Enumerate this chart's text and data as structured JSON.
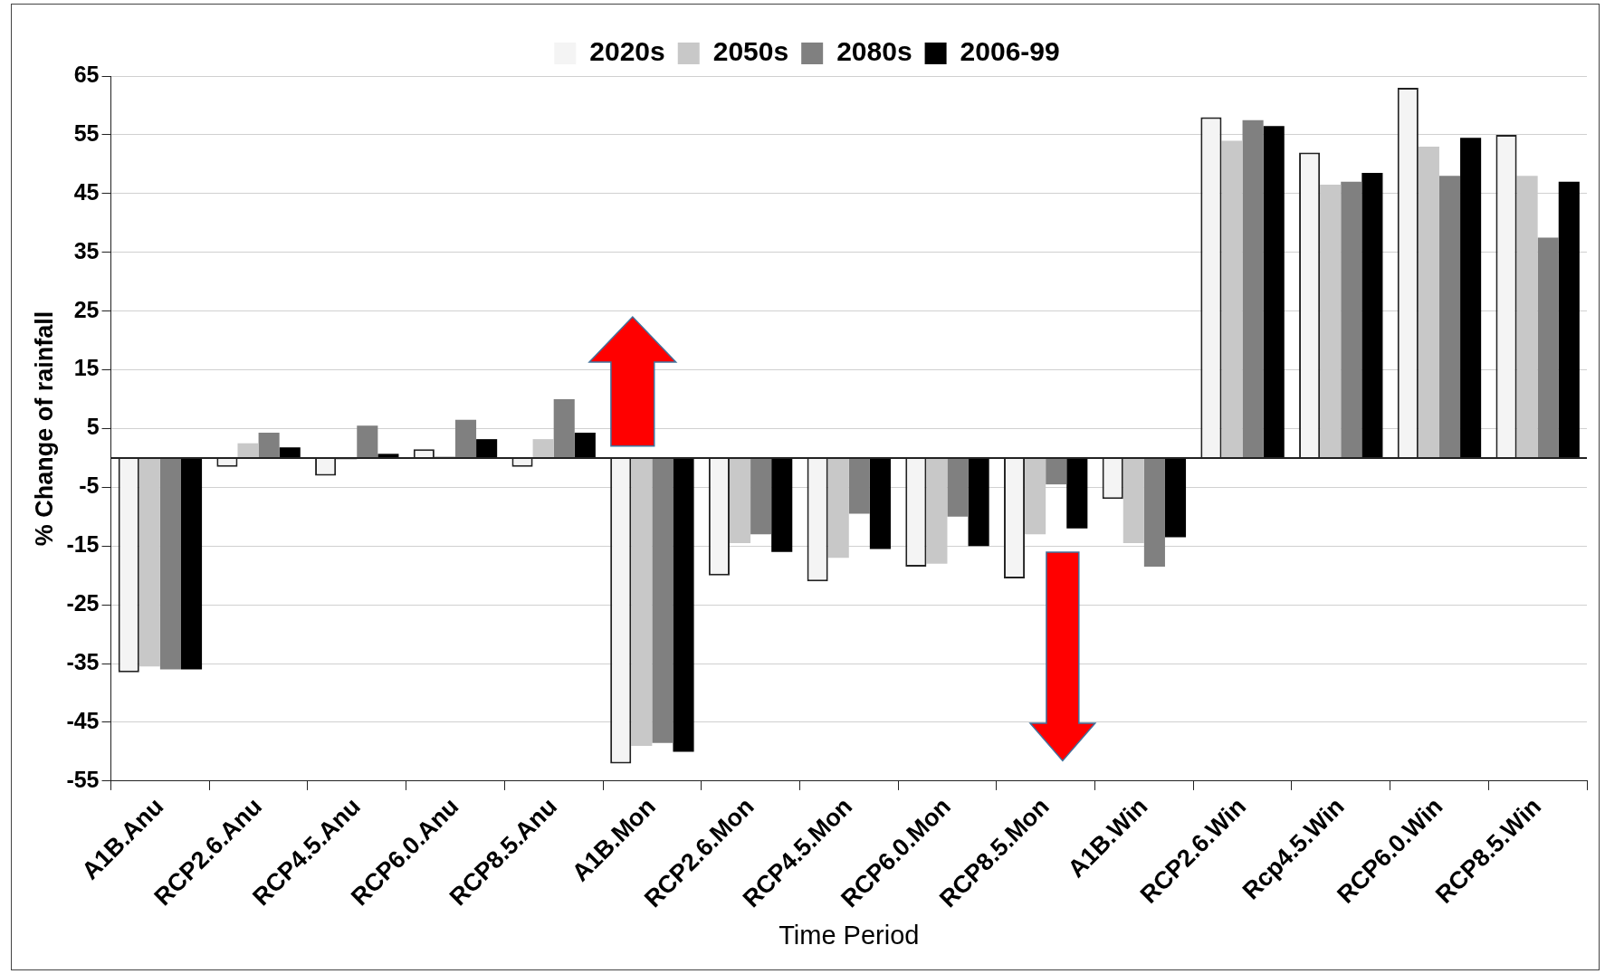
{
  "chart_data": {
    "type": "bar",
    "xlabel": "Time Period",
    "ylabel": "% Change of rainfall",
    "categories": [
      "A1B.Anu",
      "RCP2.6.Anu",
      "RCP4.5.Anu",
      "RCP6.0.Anu",
      "RCP8.5.Anu",
      "A1B.Mon",
      "RCP2.6.Mon",
      "RCP4.5.Mon",
      "RCP6.0.Mon",
      "RCP8.5.Mon",
      "A1B.Win",
      "RCP2.6.Win",
      "Rcp4.5.Win",
      "RCP6.0.Win",
      "RCP8.5.Win"
    ],
    "series": [
      {
        "name": "2020s",
        "color": "#f4f4f4",
        "values": [
          -36.5,
          -1.5,
          -3,
          1.5,
          -1.5,
          -52,
          -20,
          -21,
          -18.5,
          -20.5,
          -7,
          58,
          52,
          63,
          55
        ]
      },
      {
        "name": "2050s",
        "color": "#c8c8c8",
        "values": [
          -35.5,
          2.5,
          -0.3,
          0.3,
          3.2,
          -49,
          -14.5,
          -17,
          -18,
          -13,
          -14.5,
          54,
          46.5,
          53,
          48
        ]
      },
      {
        "name": "2080s",
        "color": "#808080",
        "values": [
          -36,
          4.3,
          5.5,
          6.5,
          10,
          -48.5,
          -13,
          -9.5,
          -10,
          -4.5,
          -18.5,
          57.5,
          47,
          48,
          37.5
        ]
      },
      {
        "name": "2006-99",
        "color": "#000000",
        "values": [
          -36,
          1.8,
          0.7,
          3.2,
          4.3,
          -50,
          -16,
          -15.5,
          -15,
          -12,
          -13.5,
          56.5,
          48.5,
          54.5,
          47
        ]
      }
    ],
    "ylim": [
      -55,
      65
    ],
    "yticks": [
      -55,
      -45,
      -35,
      -25,
      -15,
      -5,
      5,
      15,
      25,
      35,
      45,
      55,
      65
    ],
    "grid": "y",
    "legend": "top"
  }
}
